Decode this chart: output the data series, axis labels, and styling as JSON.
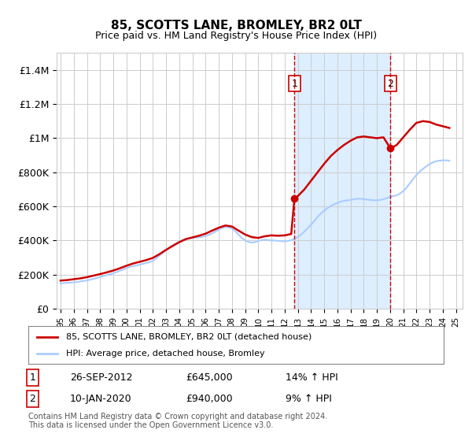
{
  "title": "85, SCOTTS LANE, BROMLEY, BR2 0LT",
  "subtitle": "Price paid vs. HM Land Registry's House Price Index (HPI)",
  "ylabel_ticks": [
    "£0",
    "£200K",
    "£400K",
    "£600K",
    "£800K",
    "£1M",
    "£1.2M",
    "£1.4M"
  ],
  "ytick_values": [
    0,
    200000,
    400000,
    600000,
    800000,
    1000000,
    1200000,
    1400000
  ],
  "ylim": [
    0,
    1500000
  ],
  "xlim_start": 1995,
  "xlim_end": 2025.5,
  "background_color": "#ffffff",
  "plot_bg_color": "#ffffff",
  "grid_color": "#cccccc",
  "hpi_line_color": "#aaccff",
  "price_line_color": "#cc0000",
  "sale1_date": 2012.74,
  "sale1_price": 645000,
  "sale2_date": 2020.03,
  "sale2_price": 940000,
  "sale1_label": "1",
  "sale2_label": "2",
  "legend_line1": "85, SCOTTS LANE, BROMLEY, BR2 0LT (detached house)",
  "legend_line2": "HPI: Average price, detached house, Bromley",
  "table_row1": [
    "1",
    "26-SEP-2012",
    "£645,000",
    "14% ↑ HPI"
  ],
  "table_row2": [
    "2",
    "10-JAN-2020",
    "£940,000",
    "9% ↑ HPI"
  ],
  "footnote": "Contains HM Land Registry data © Crown copyright and database right 2024.\nThis data is licensed under the Open Government Licence v3.0.",
  "hpi_data_x": [
    1995.0,
    1995.25,
    1995.5,
    1995.75,
    1996.0,
    1996.25,
    1996.5,
    1996.75,
    1997.0,
    1997.25,
    1997.5,
    1997.75,
    1998.0,
    1998.25,
    1998.5,
    1998.75,
    1999.0,
    1999.25,
    1999.5,
    1999.75,
    2000.0,
    2000.25,
    2000.5,
    2000.75,
    2001.0,
    2001.25,
    2001.5,
    2001.75,
    2002.0,
    2002.25,
    2002.5,
    2002.75,
    2003.0,
    2003.25,
    2003.5,
    2003.75,
    2004.0,
    2004.25,
    2004.5,
    2004.75,
    2005.0,
    2005.25,
    2005.5,
    2005.75,
    2006.0,
    2006.25,
    2006.5,
    2006.75,
    2007.0,
    2007.25,
    2007.5,
    2007.75,
    2008.0,
    2008.25,
    2008.5,
    2008.75,
    2009.0,
    2009.25,
    2009.5,
    2009.75,
    2010.0,
    2010.25,
    2010.5,
    2010.75,
    2011.0,
    2011.25,
    2011.5,
    2011.75,
    2012.0,
    2012.25,
    2012.5,
    2012.75,
    2013.0,
    2013.25,
    2013.5,
    2013.75,
    2014.0,
    2014.25,
    2014.5,
    2014.75,
    2015.0,
    2015.25,
    2015.5,
    2015.75,
    2016.0,
    2016.25,
    2016.5,
    2016.75,
    2017.0,
    2017.25,
    2017.5,
    2017.75,
    2018.0,
    2018.25,
    2018.5,
    2018.75,
    2019.0,
    2019.25,
    2019.5,
    2019.75,
    2020.0,
    2020.25,
    2020.5,
    2020.75,
    2021.0,
    2021.25,
    2021.5,
    2021.75,
    2022.0,
    2022.25,
    2022.5,
    2022.75,
    2023.0,
    2023.25,
    2023.5,
    2023.75,
    2024.0,
    2024.25,
    2024.5
  ],
  "hpi_data_y": [
    148000,
    150000,
    152000,
    153000,
    155000,
    157000,
    160000,
    163000,
    166000,
    170000,
    175000,
    180000,
    186000,
    192000,
    197000,
    202000,
    208000,
    215000,
    222000,
    230000,
    238000,
    245000,
    250000,
    254000,
    258000,
    263000,
    268000,
    273000,
    280000,
    295000,
    312000,
    328000,
    343000,
    358000,
    372000,
    383000,
    393000,
    402000,
    408000,
    412000,
    415000,
    417000,
    419000,
    421000,
    426000,
    433000,
    442000,
    453000,
    464000,
    473000,
    478000,
    477000,
    470000,
    455000,
    435000,
    415000,
    400000,
    392000,
    388000,
    390000,
    397000,
    402000,
    405000,
    403000,
    400000,
    400000,
    398000,
    396000,
    395000,
    397000,
    402000,
    410000,
    420000,
    435000,
    453000,
    472000,
    492000,
    515000,
    538000,
    558000,
    575000,
    590000,
    602000,
    612000,
    620000,
    628000,
    633000,
    635000,
    638000,
    642000,
    645000,
    645000,
    643000,
    640000,
    638000,
    636000,
    636000,
    638000,
    642000,
    648000,
    655000,
    660000,
    665000,
    675000,
    690000,
    710000,
    735000,
    760000,
    785000,
    805000,
    820000,
    835000,
    848000,
    858000,
    865000,
    868000,
    870000,
    870000,
    868000
  ],
  "price_data_x": [
    1995.0,
    1995.5,
    1996.0,
    1996.5,
    1997.0,
    1997.5,
    1998.0,
    1998.5,
    1999.0,
    1999.5,
    2000.0,
    2000.5,
    2001.0,
    2001.5,
    2002.0,
    2002.5,
    2003.0,
    2003.5,
    2004.0,
    2004.5,
    2005.0,
    2005.5,
    2006.0,
    2006.5,
    2007.0,
    2007.5,
    2008.0,
    2008.5,
    2009.0,
    2009.5,
    2010.0,
    2010.5,
    2011.0,
    2011.5,
    2012.0,
    2012.5,
    2012.74,
    2013.0,
    2013.5,
    2014.0,
    2014.5,
    2015.0,
    2015.5,
    2016.0,
    2016.5,
    2017.0,
    2017.5,
    2018.0,
    2018.5,
    2019.0,
    2019.5,
    2020.03,
    2020.5,
    2021.0,
    2021.5,
    2022.0,
    2022.5,
    2023.0,
    2023.5,
    2024.0,
    2024.5
  ],
  "price_data_y": [
    165000,
    168000,
    173000,
    178000,
    185000,
    194000,
    203000,
    213000,
    224000,
    237000,
    252000,
    265000,
    275000,
    285000,
    298000,
    320000,
    345000,
    368000,
    390000,
    408000,
    418000,
    428000,
    440000,
    458000,
    475000,
    488000,
    482000,
    458000,
    435000,
    420000,
    415000,
    425000,
    430000,
    428000,
    430000,
    438000,
    645000,
    660000,
    700000,
    750000,
    800000,
    850000,
    895000,
    930000,
    960000,
    985000,
    1005000,
    1010000,
    1005000,
    1000000,
    1005000,
    940000,
    960000,
    1005000,
    1050000,
    1090000,
    1100000,
    1095000,
    1080000,
    1070000,
    1060000
  ],
  "shaded_region_start": 2012.74,
  "shaded_region_end": 2020.03,
  "shaded_color": "#ddeeff",
  "vline_color": "#cc0000",
  "vline_style": "--"
}
